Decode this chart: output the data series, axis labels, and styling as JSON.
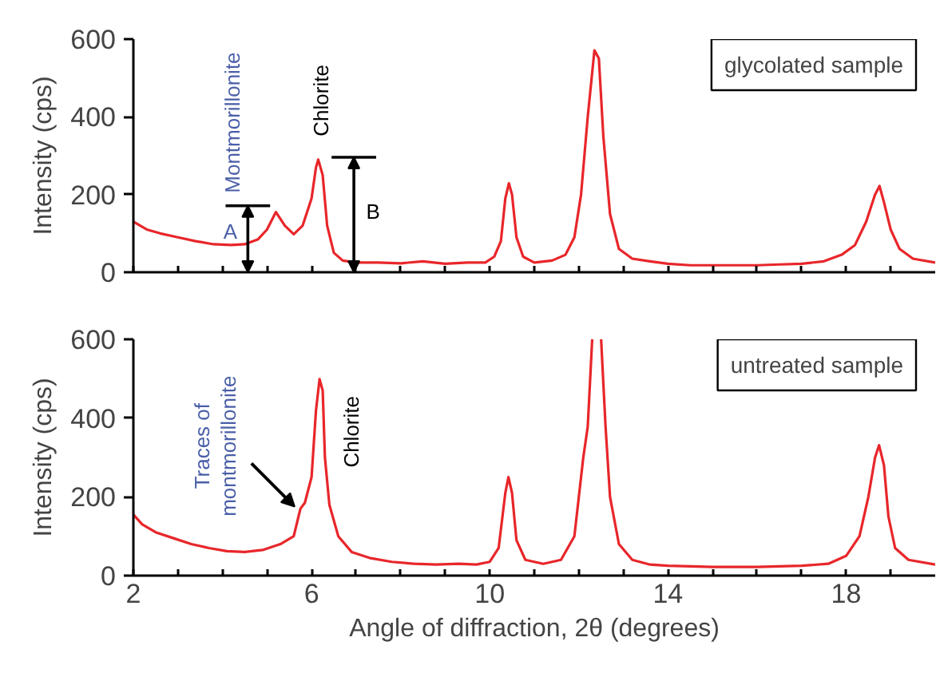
{
  "chart_data": [
    {
      "type": "line",
      "title": "glycolated sample",
      "ylabel": "Intensity (cps)",
      "xlim": [
        2,
        20
      ],
      "ylim": [
        0,
        600
      ],
      "xticks": [
        2,
        {
          "value": 3,
          "label": null
        },
        {
          "value": 4,
          "label": null
        },
        {
          "value": 5,
          "label": null
        },
        6,
        {
          "value": 7,
          "label": null
        },
        {
          "value": 8,
          "label": null
        },
        {
          "value": 9,
          "label": null
        },
        10,
        {
          "value": 11,
          "label": null
        },
        {
          "value": 12,
          "label": null
        },
        {
          "value": 13,
          "label": null
        },
        14,
        {
          "value": 15,
          "label": null
        },
        {
          "value": 16,
          "label": null
        },
        {
          "value": 17,
          "label": null
        },
        18,
        {
          "value": 19,
          "label": null
        }
      ],
      "yticks": [
        0,
        200,
        400,
        600
      ],
      "tick_labels": "y",
      "grid": false,
      "marker": "none",
      "line_style": "solid",
      "series": [
        {
          "color": "#e8262a",
          "x": [
            2.0,
            2.3,
            2.6,
            3.0,
            3.4,
            3.8,
            4.2,
            4.5,
            4.8,
            5.0,
            5.2,
            5.4,
            5.6,
            5.8,
            6.0,
            6.1,
            6.15,
            6.25,
            6.35,
            6.5,
            6.7,
            7.0,
            7.5,
            8.0,
            8.5,
            9.0,
            9.5,
            9.9,
            10.1,
            10.25,
            10.35,
            10.43,
            10.5,
            10.6,
            10.75,
            11.0,
            11.4,
            11.7,
            11.9,
            12.05,
            12.2,
            12.35,
            12.45,
            12.55,
            12.7,
            12.9,
            13.2,
            13.6,
            14.0,
            14.5,
            15.0,
            15.5,
            16.0,
            16.5,
            17.0,
            17.5,
            17.9,
            18.2,
            18.45,
            18.65,
            18.75,
            18.85,
            19.0,
            19.2,
            19.5,
            20.0
          ],
          "values": [
            130,
            110,
            100,
            90,
            80,
            72,
            70,
            72,
            85,
            110,
            155,
            120,
            98,
            120,
            190,
            270,
            290,
            250,
            120,
            50,
            30,
            25,
            25,
            23,
            28,
            22,
            25,
            25,
            40,
            80,
            190,
            229,
            200,
            90,
            40,
            25,
            30,
            45,
            90,
            200,
            400,
            571,
            550,
            350,
            150,
            60,
            35,
            28,
            22,
            18,
            18,
            18,
            18,
            20,
            22,
            28,
            45,
            70,
            130,
            200,
            222,
            180,
            110,
            60,
            35,
            25
          ]
        }
      ],
      "annotations": [
        {
          "text": "Montmorillonite",
          "x": 5.2,
          "y": 155
        },
        "A",
        {
          "text": "Chlorite",
          "x": 6.15,
          "y": 290
        },
        "B"
      ]
    },
    {
      "type": "line",
      "title": "untreated sample",
      "xlabel": "Angle of diffraction, 2θ (degrees)",
      "ylabel": "Intensity (cps)",
      "xlim": [
        2,
        20
      ],
      "ylim": [
        0,
        600
      ],
      "xticks": [
        2,
        {
          "value": 3,
          "label": null
        },
        {
          "value": 4,
          "label": null
        },
        {
          "value": 5,
          "label": null
        },
        6,
        {
          "value": 7,
          "label": null
        },
        {
          "value": 8,
          "label": null
        },
        {
          "value": 9,
          "label": null
        },
        10,
        {
          "value": 11,
          "label": null
        },
        {
          "value": 12,
          "label": null
        },
        {
          "value": 13,
          "label": null
        },
        14,
        {
          "value": 15,
          "label": null
        },
        {
          "value": 16,
          "label": null
        },
        {
          "value": 17,
          "label": null
        },
        18,
        {
          "value": 19,
          "label": null
        }
      ],
      "yticks": [
        0,
        200,
        400,
        600
      ],
      "grid": false,
      "marker": "none",
      "line_style": "solid",
      "series": [
        {
          "color": "#e8262a",
          "x": [
            2.0,
            2.2,
            2.5,
            2.9,
            3.3,
            3.7,
            4.1,
            4.5,
            4.9,
            5.3,
            5.6,
            5.75,
            5.85,
            6.0,
            6.1,
            6.18,
            6.25,
            6.3,
            6.4,
            6.6,
            6.9,
            7.3,
            7.8,
            8.3,
            8.8,
            9.3,
            9.7,
            10.0,
            10.2,
            10.35,
            10.42,
            10.5,
            10.6,
            10.8,
            11.2,
            11.6,
            11.9,
            12.1,
            12.2,
            12.3,
            12.4,
            12.5,
            12.6,
            12.7,
            12.9,
            13.2,
            13.6,
            14.0,
            15.0,
            16.0,
            17.0,
            17.6,
            18.0,
            18.3,
            18.5,
            18.65,
            18.74,
            18.85,
            18.95,
            19.1,
            19.4,
            20.0
          ],
          "values": [
            155,
            130,
            110,
            95,
            80,
            70,
            62,
            60,
            65,
            80,
            100,
            170,
            185,
            250,
            420,
            499,
            470,
            300,
            180,
            100,
            60,
            45,
            35,
            30,
            28,
            30,
            28,
            35,
            70,
            210,
            250,
            210,
            90,
            40,
            30,
            40,
            100,
            300,
            378,
            600,
            null,
            600,
            378,
            200,
            80,
            40,
            28,
            25,
            22,
            22,
            25,
            30,
            50,
            100,
            200,
            300,
            331,
            280,
            150,
            70,
            40,
            28
          ]
        }
      ],
      "annotations": [
        {
          "text": "Traces of\nmontmorillonite",
          "x": 5.7,
          "y": 175
        },
        {
          "text": "Chlorite",
          "x": 6.18,
          "y": 499
        }
      ]
    }
  ]
}
